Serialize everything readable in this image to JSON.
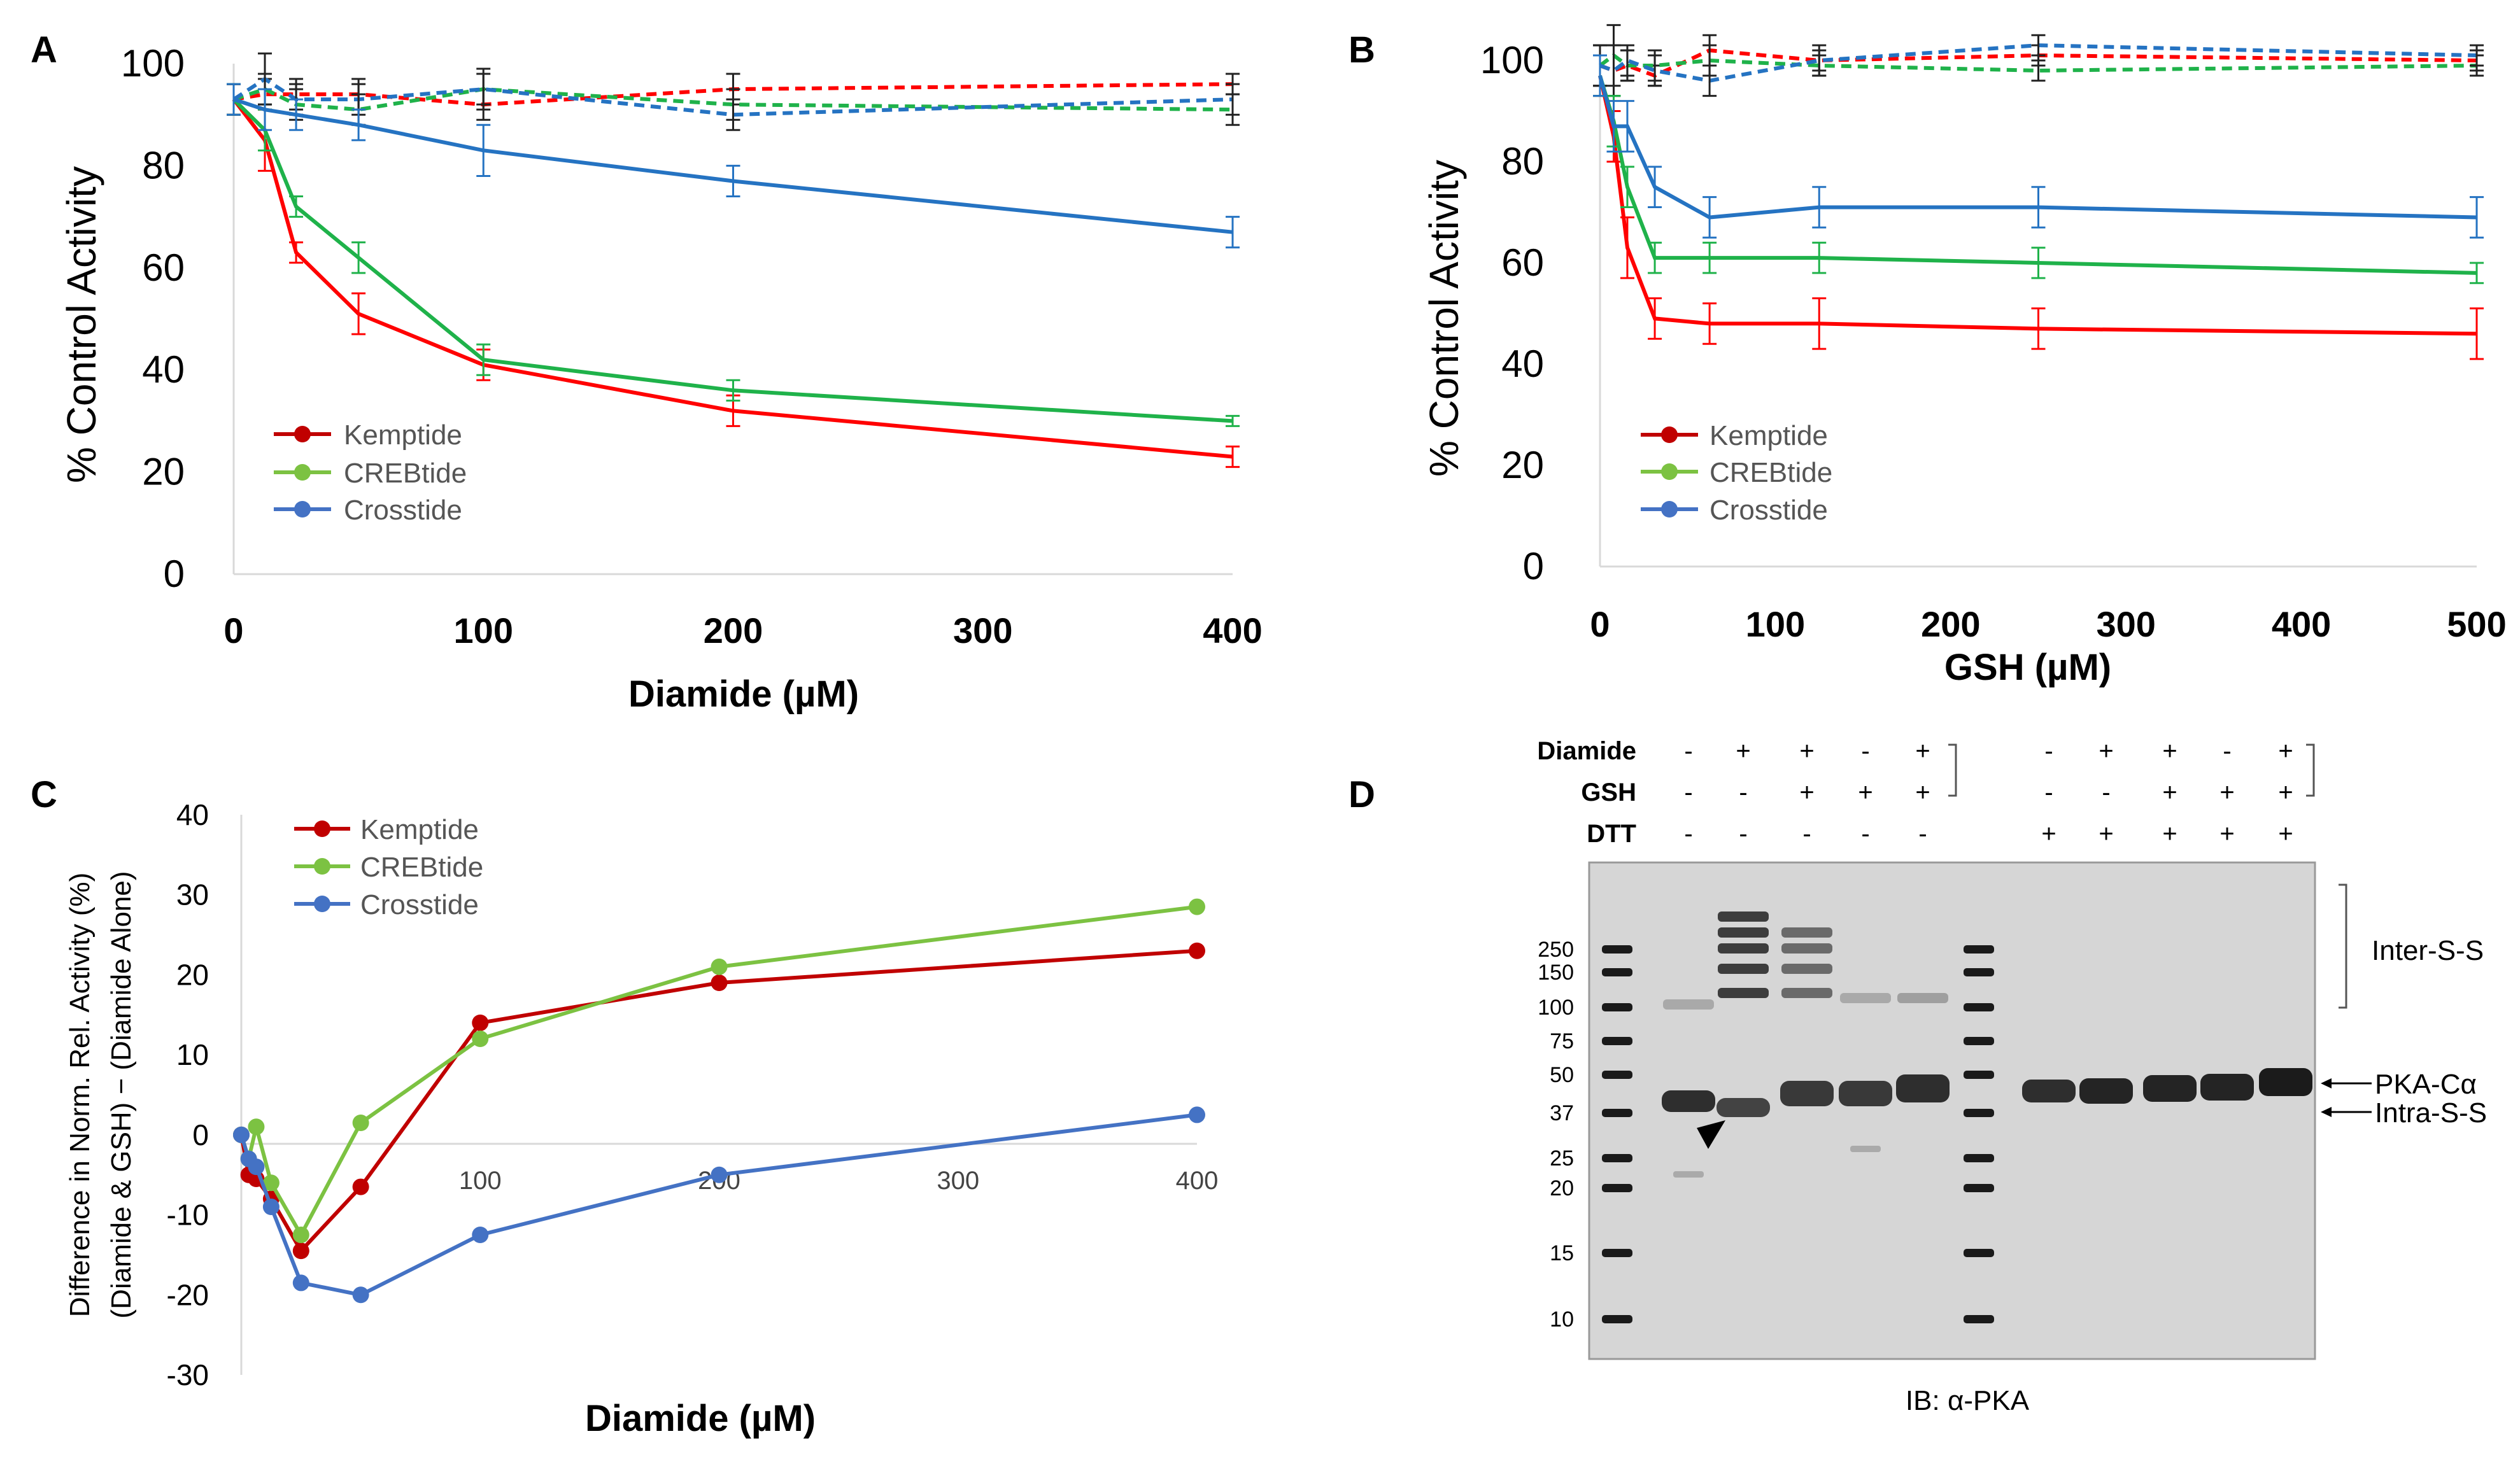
{
  "chart_data": [
    {
      "panel": "A",
      "type": "line",
      "title": "",
      "xlabel": "Diamide (µM)",
      "ylabel": "% Control Activity",
      "xlim": [
        0,
        400
      ],
      "ylim": [
        0,
        100
      ],
      "xticks": [
        "0",
        "100",
        "200",
        "300",
        "400"
      ],
      "yticks": [
        "0",
        "20",
        "40",
        "60",
        "80",
        "100"
      ],
      "x": [
        0,
        12.5,
        25,
        50,
        100,
        200,
        400
      ],
      "series": [
        {
          "name": "Kemptide",
          "color": "#ff0000",
          "style": "solid",
          "values": [
            93,
            85,
            63,
            51,
            41,
            32,
            23
          ],
          "err": [
            3,
            6,
            2,
            4,
            3,
            3,
            2
          ],
          "legend": true
        },
        {
          "name": "CREBtide",
          "color": "#1fb24a",
          "style": "solid",
          "values": [
            93,
            87,
            72,
            62,
            42,
            36,
            30
          ],
          "err": [
            3,
            4,
            2,
            3,
            3,
            2,
            1
          ],
          "legend": true
        },
        {
          "name": "Crosstide",
          "color": "#2573c2",
          "style": "solid",
          "values": [
            93,
            91,
            90,
            88,
            83,
            77,
            67
          ],
          "err": [
            3,
            4,
            3,
            3,
            5,
            3,
            3
          ],
          "legend": true
        },
        {
          "name": "Kemptide (GSH)",
          "color": "#ff0000",
          "style": "dashed",
          "values": [
            93,
            94,
            94,
            94,
            92,
            95,
            96
          ],
          "err": [
            3,
            3,
            3,
            3,
            3,
            3,
            2
          ],
          "legend": false
        },
        {
          "name": "CREBtide (GSH)",
          "color": "#1fb24a",
          "style": "dashed",
          "values": [
            93,
            95,
            92,
            91,
            95,
            92,
            91
          ],
          "err": [
            3,
            3,
            3,
            3,
            3,
            3,
            3
          ],
          "legend": false
        },
        {
          "name": "Crosstide (GSH)",
          "color": "#2573c2",
          "style": "dashed",
          "values": [
            93,
            97,
            93,
            93,
            95,
            90,
            93
          ],
          "err": [
            3,
            5,
            3,
            3,
            4,
            3,
            3
          ],
          "legend": false
        }
      ],
      "legend_labels": [
        "Kemptide",
        "CREBtide",
        "Crosstide"
      ]
    },
    {
      "panel": "B",
      "type": "line",
      "title": "",
      "xlabel": "GSH  (µM)",
      "ylabel": "% Control Activity",
      "xlim": [
        0,
        500
      ],
      "ylim": [
        0,
        100
      ],
      "xticks": [
        "0",
        "100",
        "200",
        "300",
        "400",
        "500"
      ],
      "yticks": [
        "0",
        "20",
        "40",
        "60",
        "80",
        "100"
      ],
      "x": [
        0,
        7.8,
        15.6,
        31.25,
        62.5,
        125,
        250,
        500
      ],
      "series": [
        {
          "name": "Kemptide",
          "color": "#ff0000",
          "style": "solid",
          "values": [
            97,
            85,
            63,
            49,
            48,
            48,
            47,
            46
          ],
          "err": [
            4,
            5,
            6,
            4,
            4,
            5,
            4,
            5
          ],
          "legend": true
        },
        {
          "name": "CREBtide",
          "color": "#1fb24a",
          "style": "solid",
          "values": [
            97,
            88,
            75,
            61,
            61,
            61,
            60,
            58
          ],
          "err": [
            4,
            5,
            4,
            3,
            3,
            3,
            3,
            2
          ],
          "legend": true
        },
        {
          "name": "Crosstide",
          "color": "#2573c2",
          "style": "solid",
          "values": [
            97,
            87,
            87,
            75,
            69,
            71,
            71,
            69
          ],
          "err": [
            4,
            5,
            5,
            4,
            4,
            4,
            4,
            4
          ],
          "legend": true
        },
        {
          "name": "Kemptide (GSH)",
          "color": "#ff0000",
          "style": "dashed",
          "values": [
            99,
            98,
            99,
            97,
            102,
            100,
            101,
            100
          ],
          "err": [
            4,
            5,
            3,
            2,
            3,
            2,
            2,
            2
          ],
          "legend": false
        },
        {
          "name": "CREBtide (GSH)",
          "color": "#1fb24a",
          "style": "dashed",
          "values": [
            99,
            101,
            99,
            99,
            100,
            99,
            98,
            99
          ],
          "err": [
            4,
            6,
            3,
            3,
            3,
            2,
            2,
            2
          ],
          "legend": false
        },
        {
          "name": "Crosstide (GSH)",
          "color": "#2573c2",
          "style": "dashed",
          "values": [
            99,
            98,
            100,
            98,
            96,
            100,
            103,
            101
          ],
          "err": [
            4,
            5,
            3,
            3,
            3,
            3,
            2,
            2
          ],
          "legend": false
        }
      ],
      "legend_labels": [
        "Kemptide",
        "CREBtide",
        "Crosstide"
      ]
    },
    {
      "panel": "C",
      "type": "line",
      "title": "",
      "xlabel": "Diamide (µM)",
      "ylabel_line1": "Difference in Norm. Rel. Activity (%)",
      "ylabel_line2": "(Diamide & GSH) − (Diamide Alone)",
      "xlim": [
        0,
        400
      ],
      "ylim": [
        -30,
        40
      ],
      "xticks": [
        "100",
        "200",
        "300",
        "400"
      ],
      "yticks": [
        "-30",
        "-20",
        "-10",
        "0",
        "10",
        "20",
        "30",
        "40"
      ],
      "x": [
        0,
        3.1,
        6.25,
        12.5,
        25,
        50,
        100,
        200,
        400
      ],
      "series": [
        {
          "name": "Kemptide",
          "color": "#c00000",
          "values": [
            0,
            -5,
            -5.5,
            -8,
            -14.5,
            -6.5,
            14,
            19,
            23
          ]
        },
        {
          "name": "CREBtide",
          "color": "#7cc242",
          "values": [
            0,
            -3,
            1,
            -6,
            -12.5,
            1.5,
            12,
            21,
            28.5
          ]
        },
        {
          "name": "Crosstide",
          "color": "#4472c4",
          "values": [
            0,
            -3,
            -4,
            -9,
            -18.5,
            -20,
            -12.5,
            -5,
            2.5
          ]
        }
      ]
    }
  ],
  "panel_labels": {
    "a": "A",
    "b": "B",
    "c": "C",
    "d": "D"
  },
  "western_blot": {
    "row_labels": [
      "Diamide",
      "GSH",
      "DTT"
    ],
    "lane_signs": {
      "diamide": [
        "-",
        "+",
        "+",
        "-",
        "+",
        "-",
        "+",
        "+",
        "-",
        "+"
      ],
      "gsh": [
        "-",
        "-",
        "+",
        "+",
        "+",
        "-",
        "-",
        "+",
        "+",
        "+"
      ],
      "dtt": [
        "-",
        "-",
        "-",
        "-",
        "-",
        "+",
        "+",
        "+",
        "+",
        "+"
      ]
    },
    "marker_kda": [
      "250",
      "150",
      "100",
      "75",
      "50",
      "37",
      "25",
      "20",
      "15",
      "10"
    ],
    "annotations": {
      "inter": "Inter-S-S",
      "pka": "PKA-Cα",
      "intra": "Intra-S-S"
    },
    "ib_label": "IB: α-PKA"
  },
  "colors": {
    "kemptide": "#ff0000",
    "crebtide": "#1fb24a",
    "crosstide": "#2573c2",
    "err_black": "#222222"
  }
}
